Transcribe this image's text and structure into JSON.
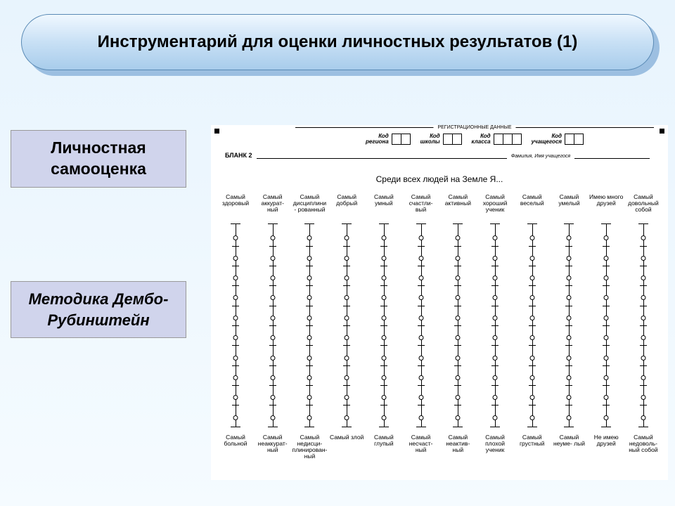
{
  "title": "Инструментарий для оценки личностных результатов (1)",
  "label_top": "Личностная самооценка",
  "label_mid": "Методика Дембо-Рубинштейн",
  "colors": {
    "page_bg_top": "#e8f4fd",
    "page_bg_bot": "#f5fbff",
    "title_grad_top": "#f0f8ff",
    "title_grad_bot": "#a8cceb",
    "title_shadow": "#7aa8d4",
    "label_bg": "#d0d4ec",
    "form_bg": "#ffffff"
  },
  "form": {
    "reg_title": "РЕГИСТРАЦИОННЫЕ ДАННЫЕ",
    "reg_fields": [
      {
        "label": "Код региона",
        "boxes": 2
      },
      {
        "label": "Код школы",
        "boxes": 2
      },
      {
        "label": "Код класса",
        "boxes": 3
      },
      {
        "label": "Код учащегося",
        "boxes": 2
      }
    ],
    "blank_label": "БЛАНК 2",
    "fio_label": "Фамилия, Имя учащегося",
    "prompt": "Среди всех людей на Земле Я...",
    "scales": {
      "count": 12,
      "rungs_per_scale": 10,
      "top_labels": [
        "Самый здоровый",
        "Самый аккурат- ный",
        "Самый дисциплини- рованный",
        "Самый добрый",
        "Самый умный",
        "Самый счастли- вый",
        "Самый активный",
        "Самый хороший ученик",
        "Самый веселый",
        "Самый умелый",
        "Имею много друзей",
        "Самый довольный собой"
      ],
      "bottom_labels": [
        "Самый больной",
        "Самый неаккурат- ный",
        "Самый недисци- плинирован- ный",
        "Самый злой",
        "Самый глупый",
        "Самый несчаст- ный",
        "Самый неактив- ный",
        "Самый плохой ученик",
        "Самый грустный",
        "Самый неуме- лый",
        "Не имею друзей",
        "Самый недоволь- ный собой"
      ]
    }
  }
}
